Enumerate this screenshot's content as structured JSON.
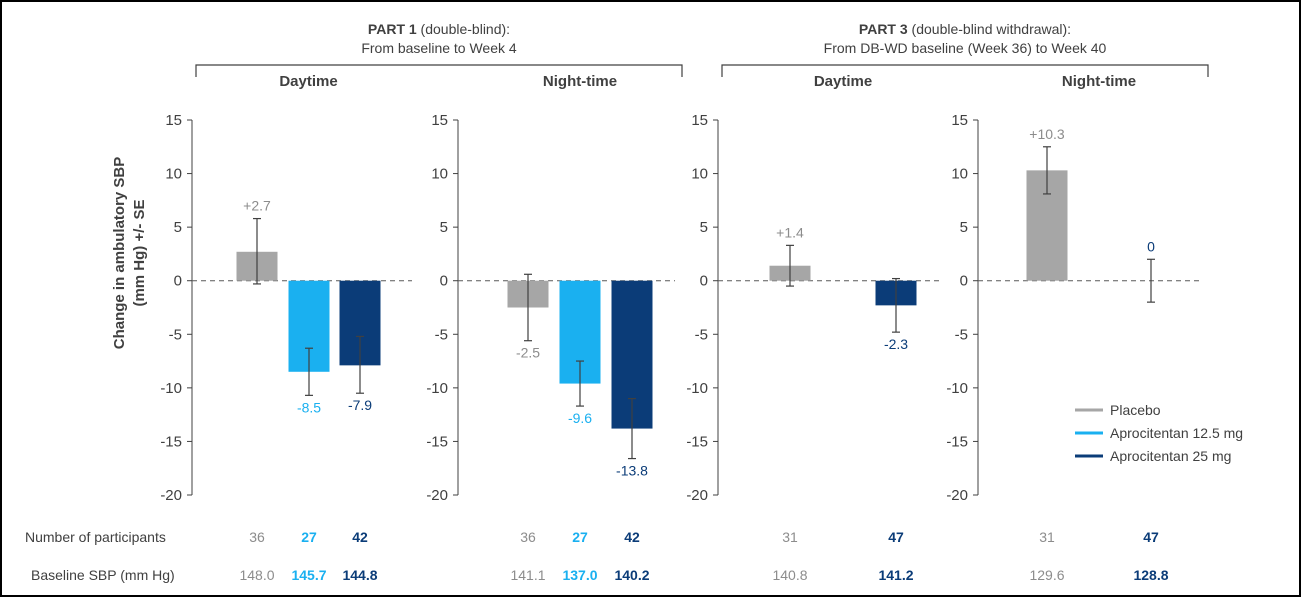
{
  "colors": {
    "placebo": "#a6a6a6",
    "apro_12_5": "#1ab0f0",
    "apro_25": "#0b3c78",
    "axis": "#404040",
    "frame": "#000000"
  },
  "headers": {
    "part1_bold": "PART 1",
    "part1_rest": " (double-blind):",
    "part1_sub": "From baseline to Week 4",
    "part3_bold": "PART 3",
    "part3_rest": " (double-blind withdrawal):",
    "part3_sub": "From DB-WD baseline (Week 36) to Week 40"
  },
  "y_axis_label_line1": "Change in ambulatory SBP",
  "y_axis_label_line2": "(mm Hg) +/- SE",
  "legend": [
    {
      "key": "placebo",
      "label": "Placebo"
    },
    {
      "key": "apro_12_5",
      "label": "Aprocitentan 12.5 mg"
    },
    {
      "key": "apro_25",
      "label": "Aprocitentan 25 mg"
    }
  ],
  "row_labels": {
    "participants": "Number of participants",
    "baseline": "Baseline SBP (mm Hg)"
  },
  "chart_data": {
    "type": "bar",
    "ylim": [
      -20,
      15
    ],
    "yticks": [
      15,
      10,
      5,
      0,
      -5,
      -10,
      -15,
      -20
    ],
    "panels": [
      {
        "title": "Daytime",
        "groups": [
          {
            "series": "placebo",
            "value": 2.7,
            "label": "+2.7",
            "se_low": -0.3,
            "se_high": 5.8,
            "n": "36",
            "baseline": "148.0"
          },
          {
            "series": "apro_12_5",
            "value": -8.5,
            "label": "-8.5",
            "se_low": -10.7,
            "se_high": -6.3,
            "n": "27",
            "baseline": "145.7"
          },
          {
            "series": "apro_25",
            "value": -7.9,
            "label": "-7.9",
            "se_low": -10.5,
            "se_high": -5.2,
            "n": "42",
            "baseline": "144.8"
          }
        ]
      },
      {
        "title": "Night-time",
        "groups": [
          {
            "series": "placebo",
            "value": -2.5,
            "label": "-2.5",
            "se_low": -5.6,
            "se_high": 0.6,
            "n": "36",
            "baseline": "141.1"
          },
          {
            "series": "apro_12_5",
            "value": -9.6,
            "label": "-9.6",
            "se_low": -11.7,
            "se_high": -7.5,
            "n": "27",
            "baseline": "137.0"
          },
          {
            "series": "apro_25",
            "value": -13.8,
            "label": "-13.8",
            "se_low": -16.6,
            "se_high": -11.0,
            "n": "42",
            "baseline": "140.2"
          }
        ]
      },
      {
        "title": "Daytime",
        "groups": [
          {
            "series": "placebo",
            "value": 1.4,
            "label": "+1.4",
            "se_low": -0.5,
            "se_high": 3.3,
            "n": "31",
            "baseline": "140.8"
          },
          {
            "series": "apro_25",
            "value": -2.3,
            "label": "-2.3",
            "se_low": -4.8,
            "se_high": 0.2,
            "n": "47",
            "baseline": "141.2"
          }
        ]
      },
      {
        "title": "Night-time",
        "groups": [
          {
            "series": "placebo",
            "value": 10.3,
            "label": "+10.3",
            "se_low": 8.1,
            "se_high": 12.5,
            "n": "31",
            "baseline": "129.6"
          },
          {
            "series": "apro_25",
            "value": 0,
            "label": "0",
            "se_low": -2.0,
            "se_high": 2.0,
            "n": "47",
            "baseline": "128.8"
          }
        ]
      }
    ]
  }
}
